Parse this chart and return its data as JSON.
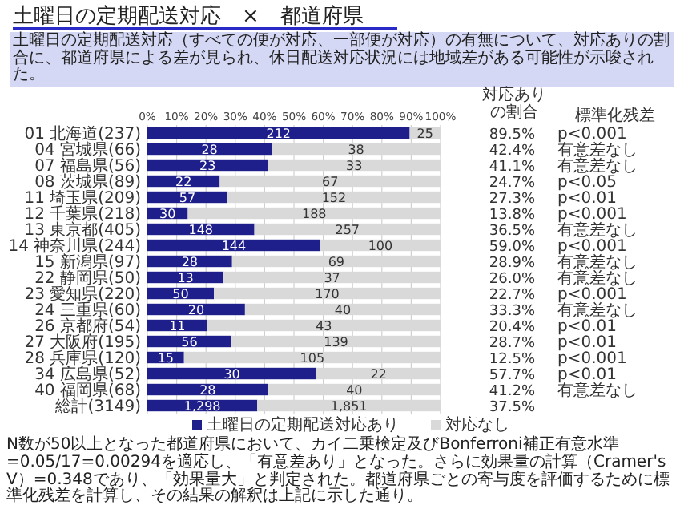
{
  "chart_data": {
    "type": "bar",
    "orientation": "horizontal",
    "stacked": true,
    "title": "土曜日の定期配送対応　×　都道府県",
    "subtitle": "土曜日の定期配送対応（すべての便が対応、一部便が対応）の有無について、対応ありの割合に、都道府県による差が見られ、休日配送対応状況には地域差がある可能性が示唆された。",
    "categories": [
      "01 北海道(237)",
      "04 宮城県(66)",
      "07 福島県(56)",
      "08 茨城県(89)",
      "11 埼玉県(209)",
      "12 千葉県(218)",
      "13 東京都(405)",
      "14 神奈川県(244)",
      "15 新潟県(97)",
      "22 静岡県(50)",
      "23 愛知県(220)",
      "24 三重県(60)",
      "26 京都府(54)",
      "27 大阪府(195)",
      "28 兵庫県(120)",
      "34 広島県(52)",
      "40 福岡県(68)",
      "総計(3149)"
    ],
    "series": [
      {
        "name": "土曜日の定期配送対応あり",
        "color": "#1f1f8c",
        "values": [
          89.5,
          42.4,
          41.1,
          24.7,
          27.3,
          13.8,
          36.5,
          59.0,
          28.9,
          26.0,
          22.7,
          33.3,
          20.4,
          28.7,
          12.5,
          57.7,
          41.2,
          37.5
        ]
      },
      {
        "name": "対応なし",
        "color": "#d9d9d9",
        "values": [
          10.5,
          57.6,
          58.9,
          75.3,
          72.7,
          86.2,
          63.5,
          41.0,
          71.1,
          74.0,
          77.3,
          66.7,
          79.6,
          71.3,
          87.5,
          42.3,
          58.8,
          62.5
        ]
      }
    ],
    "xlim": [
      0,
      100
    ],
    "xticks": [
      {
        "value": 0,
        "label": "0%"
      },
      {
        "value": 10,
        "label": "10%"
      },
      {
        "value": 20,
        "label": "20%"
      },
      {
        "value": 30,
        "label": "30%"
      },
      {
        "value": 40,
        "label": "40%"
      },
      {
        "value": 50,
        "label": "50%"
      },
      {
        "value": 60,
        "label": "60%"
      },
      {
        "value": 70,
        "label": "70%"
      },
      {
        "value": 80,
        "label": "80%"
      },
      {
        "value": 90,
        "label": "90%"
      },
      {
        "value": 100,
        "label": "100%"
      }
    ],
    "grid": "x",
    "legend": "bottom",
    "annotations": [
      "対応ありの割合",
      "標準化残差",
      "89.5%",
      "42.4%",
      "41.1%",
      "24.7%",
      "27.3%",
      "13.8%",
      "36.5%",
      "59.0%",
      "28.9%",
      "26.0%",
      "22.7%",
      "33.3%",
      "20.4%",
      "28.7%",
      "12.5%",
      "57.7%",
      "41.2%",
      "37.5%",
      "p<0.001",
      "有意差なし",
      "有意差なし",
      "p<0.05",
      "p<0.01",
      "p<0.001",
      "有意差なし",
      "p<0.001",
      "有意差なし",
      "有意差なし",
      "p<0.001",
      "有意差なし",
      "p<0.01",
      "p<0.01",
      "p<0.001",
      "p<0.01",
      "有意差なし",
      {
        "text": "212",
        "x": 44.75,
        "y": "01 北海道(237)"
      },
      {
        "text": "28",
        "x": 21.2,
        "y": "04 宮城県(66)"
      },
      {
        "text": "23",
        "x": 20.55,
        "y": "07 福島県(56)"
      },
      {
        "text": "22",
        "x": 12.35,
        "y": "08 茨城県(89)"
      },
      {
        "text": "57",
        "x": 13.65,
        "y": "11 埼玉県(209)"
      },
      {
        "text": "30",
        "x": 6.9,
        "y": "12 千葉県(218)"
      },
      {
        "text": "148",
        "x": 18.25,
        "y": "13 東京都(405)"
      },
      {
        "text": "144",
        "x": 29.5,
        "y": "14 神奈川県(244)"
      },
      {
        "text": "28",
        "x": 14.45,
        "y": "15 新潟県(97)"
      },
      {
        "text": "13",
        "x": 13,
        "y": "22 静岡県(50)"
      },
      {
        "text": "50",
        "x": 11.35,
        "y": "23 愛知県(220)"
      },
      {
        "text": "20",
        "x": 16.65,
        "y": "24 三重県(60)"
      },
      {
        "text": "11",
        "x": 10.2,
        "y": "26 京都府(54)"
      },
      {
        "text": "56",
        "x": 14.35,
        "y": "27 大阪府(195)"
      },
      {
        "text": "15",
        "x": 6.25,
        "y": "28 兵庫県(120)"
      },
      {
        "text": "30",
        "x": 28.85,
        "y": "34 広島県(52)"
      },
      {
        "text": "28",
        "x": 20.6,
        "y": "40 福岡県(68)"
      },
      {
        "text": "1,298",
        "x": 18.75,
        "y": "総計(3149)"
      },
      {
        "text": "25",
        "x": 94.75,
        "y": "01 北海道(237)"
      },
      {
        "text": "38",
        "x": 71.2,
        "y": "04 宮城県(66)"
      },
      {
        "text": "33",
        "x": 70.55,
        "y": "07 福島県(56)"
      },
      {
        "text": "67",
        "x": 62.35,
        "y": "08 茨城県(89)"
      },
      {
        "text": "152",
        "x": 63.65,
        "y": "11 埼玉県(209)"
      },
      {
        "text": "188",
        "x": 56.9,
        "y": "12 千葉県(218)"
      },
      {
        "text": "257",
        "x": 68.25,
        "y": "13 東京都(405)"
      },
      {
        "text": "100",
        "x": 79.5,
        "y": "14 神奈川県(244)"
      },
      {
        "text": "69",
        "x": 64.45,
        "y": "15 新潟県(97)"
      },
      {
        "text": "37",
        "x": 63,
        "y": "22 静岡県(50)"
      },
      {
        "text": "170",
        "x": 61.35,
        "y": "23 愛知県(220)"
      },
      {
        "text": "40",
        "x": 66.65,
        "y": "24 三重県(60)"
      },
      {
        "text": "43",
        "x": 60.2,
        "y": "26 京都府(54)"
      },
      {
        "text": "139",
        "x": 64.35,
        "y": "27 大阪府(195)"
      },
      {
        "text": "105",
        "x": 56.25,
        "y": "28 兵庫県(120)"
      },
      {
        "text": "22",
        "x": 78.85,
        "y": "34 広島県(52)"
      },
      {
        "text": "40",
        "x": 70.6,
        "y": "40 福岡県(68)"
      },
      {
        "text": "1,851",
        "x": 68.75,
        "y": "総計(3149)"
      },
      "N数が50以上となった都道府県において、カイ二乗検定及びBonferroni補正有意水準=0.05/17=0.00294を適応し、「有意差あり」となった。さらに効果量の計算（Cramer's V）=0.348であり、「効果量大」と判定された。都道府県ごとの寄与度を評価するために標準化残差を計算し、その結果の解釈は上記に示した通り。"
    ]
  }
}
